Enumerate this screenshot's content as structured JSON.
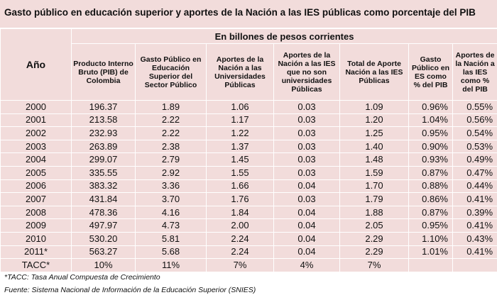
{
  "title": "Gasto público en educación superior y aportes de la Nación a las IES públicas como porcentaje del PIB",
  "table": {
    "year_header": "Año",
    "group_header": "En billones de pesos corrientes",
    "headers": [
      "Producto Interno Bruto (PIB) de Colombia",
      "Gasto Público en Educación Superior del Sector Público",
      "Aportes de la Nación a las Universidades Públicas",
      "Aportes de la Nación a las IES que no son universidades Públicas",
      "Total de Aporte Nación a las IES Públicas",
      "Gasto Público en ES como % del PIB",
      "Aportes de la Nación a las IES como % del PIB"
    ],
    "rows": [
      [
        "2000",
        "196.37",
        "1.89",
        "1.06",
        "0.03",
        "1.09",
        "0.96%",
        "0.55%"
      ],
      [
        "2001",
        "213.58",
        "2.22",
        "1.17",
        "0.03",
        "1.20",
        "1.04%",
        "0.56%"
      ],
      [
        "2002",
        "232.93",
        "2.22",
        "1.22",
        "0.03",
        "1.25",
        "0.95%",
        "0.54%"
      ],
      [
        "2003",
        "263.89",
        "2.38",
        "1.37",
        "0.03",
        "1.40",
        "0.90%",
        "0.53%"
      ],
      [
        "2004",
        "299.07",
        "2.79",
        "1.45",
        "0.03",
        "1.48",
        "0.93%",
        "0.49%"
      ],
      [
        "2005",
        "335.55",
        "2.92",
        "1.55",
        "0.03",
        "1.59",
        "0.87%",
        "0.47%"
      ],
      [
        "2006",
        "383.32",
        "3.36",
        "1.66",
        "0.04",
        "1.70",
        "0.88%",
        "0.44%"
      ],
      [
        "2007",
        "431.84",
        "3.70",
        "1.76",
        "0.03",
        "1.79",
        "0.86%",
        "0.41%"
      ],
      [
        "2008",
        "478.36",
        "4.16",
        "1.84",
        "0.04",
        "1.88",
        "0.87%",
        "0.39%"
      ],
      [
        "2009",
        "497.97",
        "4.73",
        "2.00",
        "0.04",
        "2.05",
        "0.95%",
        "0.41%"
      ],
      [
        "2010",
        "530.20",
        "5.81",
        "2.24",
        "0.04",
        "2.29",
        "1.10%",
        "0.43%"
      ],
      [
        "2011*",
        "563.27",
        "5.68",
        "2.24",
        "0.04",
        "2.29",
        "1.01%",
        "0.41%"
      ],
      [
        "TACC*",
        "10%",
        "11%",
        "7%",
        "4%",
        "7%"
      ]
    ]
  },
  "footnotes": [
    "*TACC: Tasa Anual Compuesta de Crecimiento",
    "Fuente: Sistema Nacional de Información de la Educación Superior (SNIES)"
  ]
}
